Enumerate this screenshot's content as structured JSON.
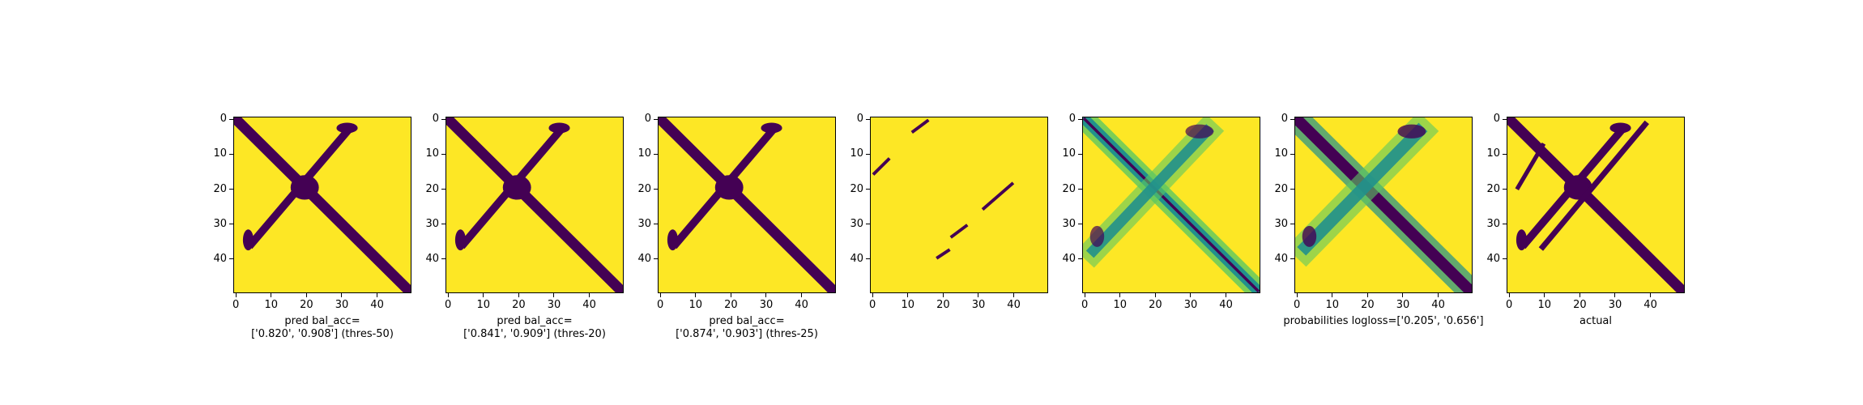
{
  "chart_data": [
    {
      "type": "heatmap",
      "pattern": "binary_x",
      "x_ticks": [
        "0",
        "10",
        "20",
        "30",
        "40"
      ],
      "y_ticks": [
        "0",
        "10",
        "20",
        "30",
        "40"
      ],
      "xlim": [
        0,
        50
      ],
      "ylim": [
        0,
        50
      ],
      "xlabel_line1": "pred bal_acc=",
      "xlabel_line2": "['0.820', '0.908'] (thres-50)"
    },
    {
      "type": "heatmap",
      "pattern": "binary_x",
      "x_ticks": [
        "0",
        "10",
        "20",
        "30",
        "40"
      ],
      "y_ticks": [
        "0",
        "10",
        "20",
        "30",
        "40"
      ],
      "xlim": [
        0,
        50
      ],
      "ylim": [
        0,
        50
      ],
      "xlabel_line1": "pred bal_acc=",
      "xlabel_line2": "['0.841', '0.909'] (thres-20)"
    },
    {
      "type": "heatmap",
      "pattern": "binary_x",
      "x_ticks": [
        "0",
        "10",
        "20",
        "30",
        "40"
      ],
      "y_ticks": [
        "0",
        "10",
        "20",
        "30",
        "40"
      ],
      "xlim": [
        0,
        50
      ],
      "ylim": [
        0,
        50
      ],
      "xlabel_line1": "pred bal_acc=",
      "xlabel_line2": "['0.874', '0.903'] (thres-25)"
    },
    {
      "type": "heatmap",
      "pattern": "sparse_diagonals",
      "x_ticks": [
        "0",
        "10",
        "20",
        "30",
        "40"
      ],
      "y_ticks": [
        "0",
        "10",
        "20",
        "30",
        "40"
      ],
      "xlim": [
        0,
        50
      ],
      "ylim": [
        0,
        50
      ],
      "xlabel_line1": "",
      "xlabel_line2": ""
    },
    {
      "type": "heatmap",
      "pattern": "continuous_x",
      "x_ticks": [
        "0",
        "10",
        "20",
        "30",
        "40"
      ],
      "y_ticks": [
        "0",
        "10",
        "20",
        "30",
        "40"
      ],
      "xlim": [
        0,
        50
      ],
      "ylim": [
        0,
        50
      ],
      "xlabel_line1": "",
      "xlabel_line2": ""
    },
    {
      "type": "heatmap",
      "pattern": "probability_x",
      "x_ticks": [
        "0",
        "10",
        "20",
        "30",
        "40"
      ],
      "y_ticks": [
        "0",
        "10",
        "20",
        "30",
        "40"
      ],
      "xlim": [
        0,
        50
      ],
      "ylim": [
        0,
        50
      ],
      "xlabel_line1": "probabilities logloss=['0.205', '0.656']",
      "xlabel_line2": ""
    },
    {
      "type": "heatmap",
      "pattern": "binary_x_actual",
      "x_ticks": [
        "0",
        "10",
        "20",
        "30",
        "40"
      ],
      "y_ticks": [
        "0",
        "10",
        "20",
        "30",
        "40"
      ],
      "xlim": [
        0,
        50
      ],
      "ylim": [
        0,
        50
      ],
      "xlabel_line1": "actual",
      "xlabel_line2": ""
    }
  ],
  "colors": {
    "high": "#fde725",
    "low": "#440154",
    "mid": "#21918c",
    "light": "#5ec962"
  }
}
